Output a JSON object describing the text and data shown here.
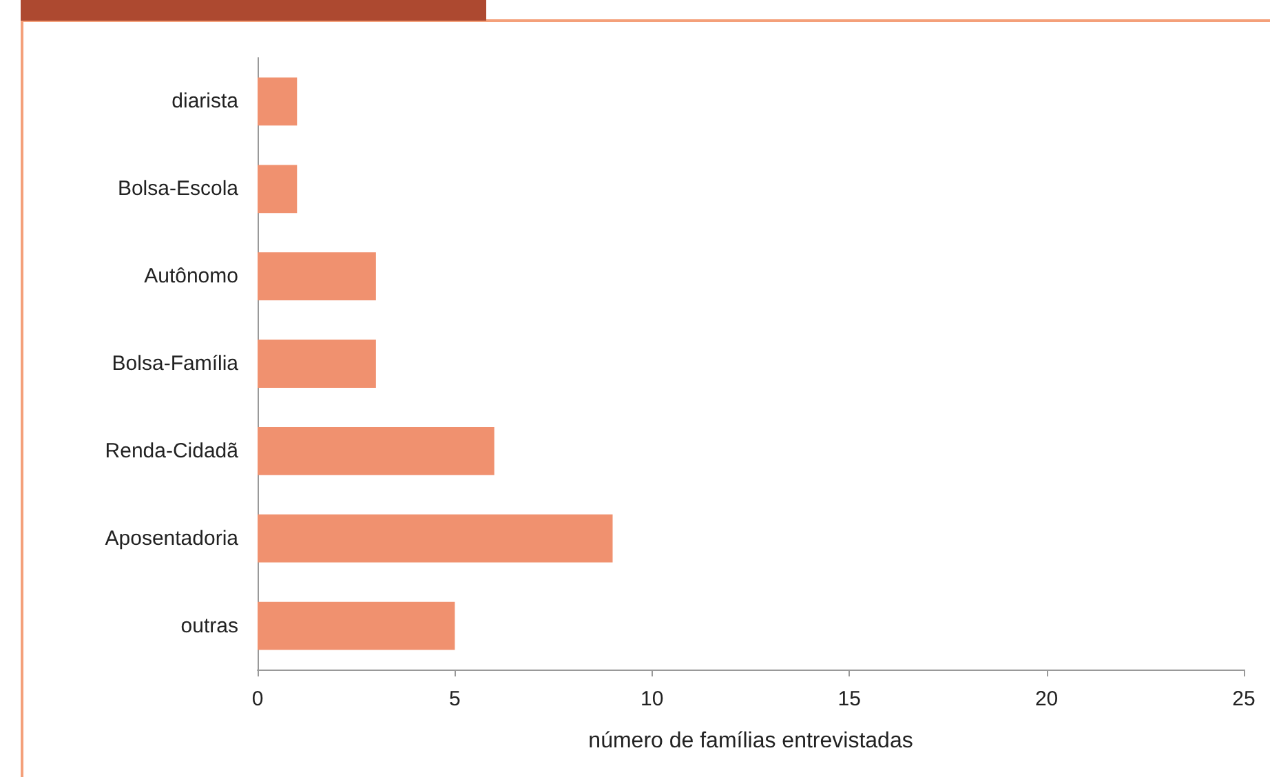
{
  "chart_data": {
    "type": "bar",
    "orientation": "horizontal",
    "xlabel": "número de famílias entrevistadas",
    "categories": [
      "diarista",
      "Bolsa-Escola",
      "Autônomo",
      "Bolsa-Família",
      "Renda-Cidadã",
      "Aposentadoria",
      "outras"
    ],
    "values": [
      1,
      1,
      3,
      3,
      6,
      9,
      5
    ],
    "color": "#f0916f",
    "xlim": [
      0,
      25
    ],
    "xticks": [
      0,
      5,
      10,
      15,
      20,
      25
    ],
    "grid": false
  }
}
